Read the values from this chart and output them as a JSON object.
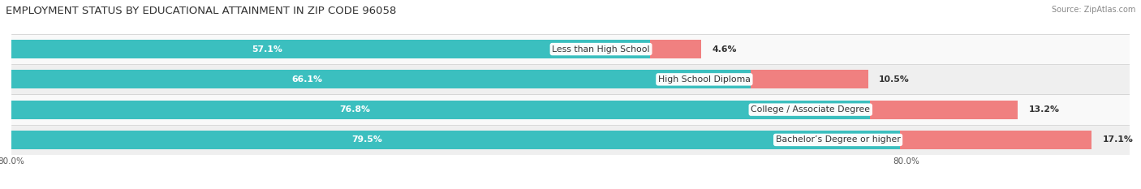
{
  "title": "EMPLOYMENT STATUS BY EDUCATIONAL ATTAINMENT IN ZIP CODE 96058",
  "source": "Source: ZipAtlas.com",
  "categories": [
    "Less than High School",
    "High School Diploma",
    "College / Associate Degree",
    "Bachelor’s Degree or higher"
  ],
  "labor_force": [
    57.1,
    66.1,
    76.8,
    79.5
  ],
  "unemployed": [
    4.6,
    10.5,
    13.2,
    17.1
  ],
  "labor_force_color": "#3bbfbf",
  "unemployed_color": "#f08080",
  "row_bg_colors": [
    "#efefef",
    "#f9f9f9",
    "#efefef",
    "#f9f9f9"
  ],
  "bar_height": 0.62,
  "title_fontsize": 9.5,
  "label_fontsize": 7.8,
  "tick_fontsize": 7.5,
  "source_fontsize": 7.0,
  "legend_fontsize": 7.5,
  "title_color": "#333333",
  "label_color_white": "#ffffff",
  "category_color": "#333333",
  "tick_color": "#555555",
  "x_min": 0,
  "x_max": 100,
  "left_tick_label": "80.0%",
  "right_tick_label": "80.0%",
  "figsize": [
    14.06,
    2.33
  ],
  "dpi": 100
}
